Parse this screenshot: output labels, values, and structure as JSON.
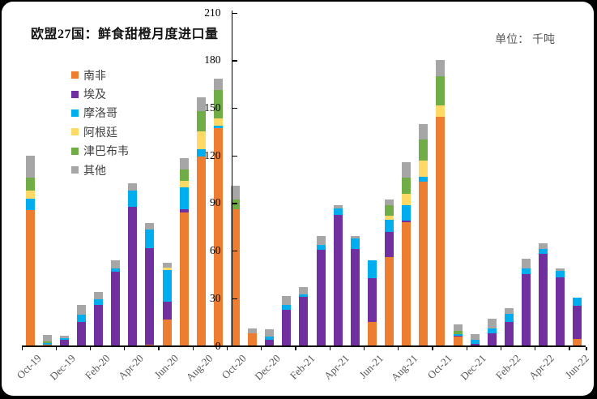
{
  "title": "欧盟27国：鲜食甜橙月度进口量",
  "unit_label": "单位： 千吨",
  "chart_data": {
    "type": "bar",
    "stacked": true,
    "title": "欧盟27国：鲜食甜橙月度进口量",
    "unit": "千吨",
    "legend_position": "upper-left",
    "grid": false,
    "y_axis": {
      "min": 0,
      "max": 210,
      "step": 30,
      "ticks": [
        0,
        30,
        60,
        90,
        120,
        150,
        180,
        210
      ]
    },
    "categories": [
      "Oct-19",
      "Nov-19",
      "Dec-19",
      "Jan-20",
      "Feb-20",
      "Mar-20",
      "Apr-20",
      "May-20",
      "Jun-20",
      "Jul-20",
      "Aug-20",
      "Sep-20",
      "Oct-20",
      "Nov-20",
      "Dec-20",
      "Jan-21",
      "Feb-21",
      "Mar-21",
      "Apr-21",
      "May-21",
      "Jun-21",
      "Jul-21",
      "Aug-21",
      "Sep-21",
      "Oct-21",
      "Nov-21",
      "Dec-21",
      "Jan-22",
      "Feb-22",
      "Mar-22",
      "Apr-22",
      "May-22",
      "Jun-22"
    ],
    "x_tick_labels": [
      "Oct-19",
      "Dec-19",
      "Feb-20",
      "Apr-20",
      "Jun-20",
      "Aug-20",
      "Oct-20",
      "Dec-20",
      "Feb-21",
      "Apr-21",
      "Jun-21",
      "Aug-21",
      "Oct-21",
      "Dec-21",
      "Feb-22",
      "Apr-22",
      "Jun-22"
    ],
    "series": [
      {
        "name": "南非",
        "key": "south-africa",
        "color": "#ED7D31",
        "values": [
          86,
          1,
          0,
          0,
          0,
          0,
          0,
          1,
          17,
          84.5,
          119.5,
          137.5,
          86.5,
          8,
          0,
          0,
          0,
          0,
          0,
          0,
          15.5,
          56,
          78,
          104,
          144.5,
          6,
          0,
          0,
          0,
          0,
          0,
          0,
          4.5
        ]
      },
      {
        "name": "埃及",
        "key": "egypt",
        "color": "#7030A0",
        "values": [
          0,
          0,
          4,
          15.5,
          26,
          47,
          88,
          61,
          11,
          2,
          0,
          0,
          0,
          0,
          4,
          23,
          31,
          61,
          83,
          61.5,
          27.5,
          16,
          1,
          0,
          0,
          0.5,
          1.5,
          8,
          15.5,
          45.5,
          58.5,
          43.5,
          21
        ]
      },
      {
        "name": "摩洛哥",
        "key": "morocco",
        "color": "#00AEEF",
        "values": [
          7,
          1,
          1,
          4.5,
          3.5,
          2,
          10,
          11.5,
          20,
          13.5,
          4.5,
          1.5,
          0,
          0,
          2,
          3,
          1.5,
          3,
          4,
          6.5,
          11,
          7.5,
          10,
          3,
          0,
          1,
          2.5,
          3.5,
          5,
          3.5,
          3,
          4,
          5
        ]
      },
      {
        "name": "阿根廷",
        "key": "argentina",
        "color": "#FFD966",
        "values": [
          5,
          0,
          0,
          0,
          0,
          0,
          0,
          0,
          1.5,
          4.5,
          11.5,
          4.5,
          0,
          0,
          0,
          0,
          0,
          0,
          0,
          0,
          0,
          3,
          7,
          10,
          7.5,
          0,
          0,
          0,
          0,
          0,
          0,
          0,
          0
        ]
      },
      {
        "name": "津巴布韦",
        "key": "zimbabwe",
        "color": "#70AD47",
        "values": [
          8.5,
          1,
          0,
          0,
          0,
          0,
          0,
          0,
          0,
          7,
          13,
          18,
          6,
          0,
          0,
          0,
          0,
          0,
          0,
          0,
          0,
          6.5,
          10.5,
          13.5,
          18,
          2,
          0,
          0,
          0,
          0,
          0,
          0,
          0
        ]
      },
      {
        "name": "其他",
        "key": "other",
        "color": "#A6A6A6",
        "values": [
          13.5,
          4,
          1.5,
          6,
          4.5,
          5,
          5,
          4,
          3,
          7,
          8.5,
          7,
          8.5,
          3,
          4.8,
          5.5,
          5,
          5.5,
          2,
          1.5,
          0,
          3.5,
          9.5,
          9.5,
          10.5,
          4.5,
          3.8,
          6,
          3.5,
          6,
          3.5,
          1.5,
          0
        ]
      }
    ]
  }
}
